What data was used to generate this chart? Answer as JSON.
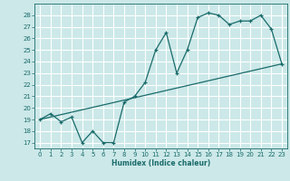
{
  "xlabel": "Humidex (Indice chaleur)",
  "bg_color": "#cce8e8",
  "grid_color": "#ffffff",
  "line_color": "#1a6b6b",
  "xlim": [
    -0.5,
    23.5
  ],
  "ylim": [
    16.5,
    29.0
  ],
  "xticks": [
    0,
    1,
    2,
    3,
    4,
    5,
    6,
    7,
    8,
    9,
    10,
    11,
    12,
    13,
    14,
    15,
    16,
    17,
    18,
    19,
    20,
    21,
    22,
    23
  ],
  "yticks": [
    17,
    18,
    19,
    20,
    21,
    22,
    23,
    24,
    25,
    26,
    27,
    28
  ],
  "curve_x": [
    0,
    1,
    2,
    3,
    4,
    5,
    6,
    7,
    8,
    9,
    10,
    11,
    12,
    13,
    14,
    15,
    16,
    17,
    18,
    19,
    20,
    21,
    22,
    23
  ],
  "curve_y": [
    19.0,
    19.5,
    18.8,
    19.2,
    17.0,
    18.0,
    17.0,
    17.0,
    20.5,
    21.0,
    22.2,
    25.0,
    26.5,
    23.0,
    25.0,
    27.8,
    28.2,
    28.0,
    27.2,
    27.5,
    27.5,
    28.0,
    26.8,
    23.8
  ],
  "trend_x": [
    0,
    23
  ],
  "trend_y": [
    19.0,
    23.8
  ]
}
